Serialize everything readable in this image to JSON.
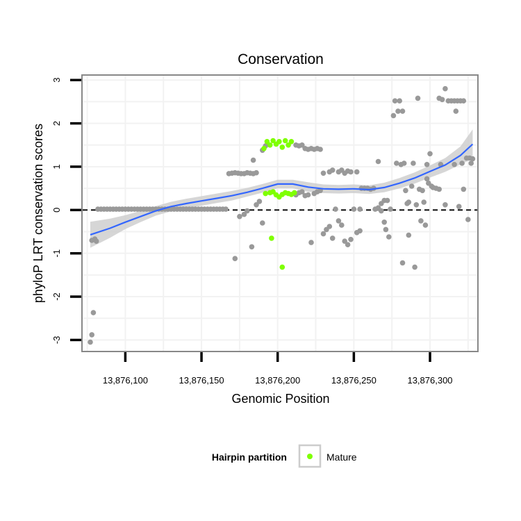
{
  "chart_data": {
    "type": "scatter",
    "title": "Conservation",
    "xlabel": "Genomic Position",
    "ylabel": "phyloP LRT conservation scores",
    "xlim": [
      13876072,
      13876331
    ],
    "ylim": [
      -3.25,
      3.1
    ],
    "x_ticks": [
      13876100,
      13876150,
      13876200,
      13876250,
      13876300
    ],
    "x_tick_labels": [
      "13,876,100",
      "13,876,150",
      "13,876,200",
      "13,876,250",
      "13,876,300"
    ],
    "y_ticks": [
      -3,
      -2,
      -1,
      0,
      1,
      2,
      3
    ],
    "y_tick_labels": [
      "-3",
      "-2",
      "-1",
      "0",
      "1",
      "2",
      "3"
    ],
    "reference_line": {
      "y": 0,
      "style": "dashed"
    },
    "colors": {
      "other": "#999999",
      "mature": "#7FFF00",
      "smooth": "#3366FF",
      "ribbon": "#CCCCCC",
      "refline": "#000000",
      "panel_border": "#888888",
      "grid": "#F2F2F2"
    },
    "legend": {
      "title": "Hairpin partition",
      "entries": [
        {
          "label": "Mature",
          "color": "#7FFF00"
        }
      ],
      "position": "bottom"
    },
    "series": [
      {
        "name": "Other",
        "points": [
          [
            13876077,
            -3.05
          ],
          [
            13876078,
            -2.88
          ],
          [
            13876079,
            -2.37
          ],
          [
            13876078,
            -0.7
          ],
          [
            13876080,
            -0.67
          ],
          [
            13876081,
            -0.72
          ],
          [
            13876082,
            0.02
          ],
          [
            13876084,
            0.02
          ],
          [
            13876086,
            0.02
          ],
          [
            13876088,
            0.02
          ],
          [
            13876090,
            0.02
          ],
          [
            13876092,
            0.02
          ],
          [
            13876094,
            0.02
          ],
          [
            13876096,
            0.02
          ],
          [
            13876098,
            0.02
          ],
          [
            13876100,
            0.02
          ],
          [
            13876102,
            0.02
          ],
          [
            13876104,
            0.02
          ],
          [
            13876106,
            0.02
          ],
          [
            13876108,
            0.02
          ],
          [
            13876110,
            0.02
          ],
          [
            13876112,
            0.02
          ],
          [
            13876114,
            0.02
          ],
          [
            13876116,
            0.02
          ],
          [
            13876118,
            0.02
          ],
          [
            13876120,
            0.02
          ],
          [
            13876122,
            0.02
          ],
          [
            13876124,
            0.02
          ],
          [
            13876126,
            0.02
          ],
          [
            13876128,
            0.02
          ],
          [
            13876130,
            0.02
          ],
          [
            13876132,
            0.02
          ],
          [
            13876134,
            0.02
          ],
          [
            13876136,
            0.02
          ],
          [
            13876138,
            0.02
          ],
          [
            13876140,
            0.02
          ],
          [
            13876142,
            0.02
          ],
          [
            13876144,
            0.02
          ],
          [
            13876146,
            0.02
          ],
          [
            13876148,
            0.02
          ],
          [
            13876150,
            0.02
          ],
          [
            13876152,
            0.02
          ],
          [
            13876154,
            0.02
          ],
          [
            13876156,
            0.02
          ],
          [
            13876158,
            0.02
          ],
          [
            13876160,
            0.02
          ],
          [
            13876162,
            0.02
          ],
          [
            13876164,
            0.02
          ],
          [
            13876166,
            0.02
          ],
          [
            13876168,
            0.84
          ],
          [
            13876170,
            0.85
          ],
          [
            13876172,
            0.86
          ],
          [
            13876174,
            0.85
          ],
          [
            13876176,
            0.84
          ],
          [
            13876178,
            0.84
          ],
          [
            13876180,
            0.86
          ],
          [
            13876182,
            0.85
          ],
          [
            13876184,
            0.84
          ],
          [
            13876186,
            0.86
          ],
          [
            13876172,
            -1.12
          ],
          [
            13876175,
            -0.15
          ],
          [
            13876178,
            -0.1
          ],
          [
            13876180,
            -0.02
          ],
          [
            13876183,
            -0.85
          ],
          [
            13876184,
            1.15
          ],
          [
            13876186,
            0.12
          ],
          [
            13876188,
            0.2
          ],
          [
            13876190,
            -0.3
          ],
          [
            13876190,
            1.38
          ],
          [
            13876192,
            1.48
          ],
          [
            13876212,
            1.5
          ],
          [
            13876214,
            1.48
          ],
          [
            13876216,
            1.5
          ],
          [
            13876218,
            1.42
          ],
          [
            13876220,
            1.4
          ],
          [
            13876222,
            1.42
          ],
          [
            13876224,
            1.4
          ],
          [
            13876226,
            1.42
          ],
          [
            13876228,
            1.4
          ],
          [
            13876212,
            0.35
          ],
          [
            13876214,
            0.4
          ],
          [
            13876216,
            0.42
          ],
          [
            13876218,
            0.33
          ],
          [
            13876220,
            0.35
          ],
          [
            13876222,
            -0.75
          ],
          [
            13876224,
            0.38
          ],
          [
            13876226,
            0.42
          ],
          [
            13876228,
            0.45
          ],
          [
            13876230,
            0.85
          ],
          [
            13876232,
            -0.45
          ],
          [
            13876234,
            -0.38
          ],
          [
            13876236,
            -0.65
          ],
          [
            13876230,
            -0.55
          ],
          [
            13876234,
            0.88
          ],
          [
            13876236,
            0.92
          ],
          [
            13876238,
            0.02
          ],
          [
            13876240,
            -0.25
          ],
          [
            13876242,
            -0.35
          ],
          [
            13876244,
            -0.72
          ],
          [
            13876240,
            0.88
          ],
          [
            13876242,
            0.92
          ],
          [
            13876244,
            0.85
          ],
          [
            13876246,
            0.9
          ],
          [
            13876246,
            -0.8
          ],
          [
            13876248,
            -0.68
          ],
          [
            13876248,
            0.88
          ],
          [
            13876250,
            0.02
          ],
          [
            13876252,
            -0.52
          ],
          [
            13876254,
            0.02
          ],
          [
            13876252,
            0.88
          ],
          [
            13876254,
            -0.48
          ],
          [
            13876255,
            0.5
          ],
          [
            13876257,
            0.5
          ],
          [
            13876259,
            0.5
          ],
          [
            13876261,
            0.48
          ],
          [
            13876263,
            0.5
          ],
          [
            13876264,
            0.02
          ],
          [
            13876266,
            0.05
          ],
          [
            13876266,
            1.12
          ],
          [
            13876268,
            -0.02
          ],
          [
            13876268,
            0.15
          ],
          [
            13876270,
            0.22
          ],
          [
            13876270,
            -0.28
          ],
          [
            13876271,
            -0.45
          ],
          [
            13876272,
            0.22
          ],
          [
            13876273,
            -0.62
          ],
          [
            13876274,
            0.02
          ],
          [
            13876276,
            2.18
          ],
          [
            13876277,
            2.52
          ],
          [
            13876278,
            1.08
          ],
          [
            13876279,
            2.28
          ],
          [
            13876280,
            2.52
          ],
          [
            13876281,
            1.05
          ],
          [
            13876282,
            2.28
          ],
          [
            13876283,
            1.08
          ],
          [
            13876282,
            -1.22
          ],
          [
            13876284,
            0.45
          ],
          [
            13876285,
            0.15
          ],
          [
            13876286,
            0.18
          ],
          [
            13876286,
            -0.58
          ],
          [
            13876288,
            0.55
          ],
          [
            13876289,
            1.08
          ],
          [
            13876290,
            -1.32
          ],
          [
            13876291,
            0.12
          ],
          [
            13876292,
            2.58
          ],
          [
            13876293,
            0.48
          ],
          [
            13876294,
            -0.25
          ],
          [
            13876295,
            0.45
          ],
          [
            13876296,
            0.18
          ],
          [
            13876297,
            -0.35
          ],
          [
            13876298,
            1.05
          ],
          [
            13876298,
            0.72
          ],
          [
            13876299,
            0.62
          ],
          [
            13876300,
            1.3
          ],
          [
            13876301,
            0.55
          ],
          [
            13876302,
            0.52
          ],
          [
            13876304,
            0.5
          ],
          [
            13876306,
            0.48
          ],
          [
            13876307,
            1.05
          ],
          [
            13876306,
            2.58
          ],
          [
            13876308,
            2.55
          ],
          [
            13876310,
            2.8
          ],
          [
            13876310,
            0.12
          ],
          [
            13876312,
            2.52
          ],
          [
            13876314,
            2.52
          ],
          [
            13876316,
            2.52
          ],
          [
            13876316,
            1.05
          ],
          [
            13876317,
            2.28
          ],
          [
            13876318,
            2.52
          ],
          [
            13876319,
            0.08
          ],
          [
            13876320,
            2.52
          ],
          [
            13876321,
            1.08
          ],
          [
            13876322,
            2.52
          ],
          [
            13876322,
            0.48
          ],
          [
            13876324,
            1.2
          ],
          [
            13876325,
            -0.22
          ],
          [
            13876326,
            1.2
          ],
          [
            13876327,
            1.08
          ],
          [
            13876328,
            1.18
          ]
        ]
      },
      {
        "name": "Mature",
        "points": [
          [
            13876191,
            1.42
          ],
          [
            13876193,
            1.58
          ],
          [
            13876195,
            1.5
          ],
          [
            13876197,
            1.6
          ],
          [
            13876199,
            1.52
          ],
          [
            13876201,
            1.58
          ],
          [
            13876203,
            1.45
          ],
          [
            13876205,
            1.6
          ],
          [
            13876207,
            1.5
          ],
          [
            13876209,
            1.58
          ],
          [
            13876192,
            0.38
          ],
          [
            13876195,
            0.4
          ],
          [
            13876197,
            0.42
          ],
          [
            13876199,
            0.35
          ],
          [
            13876201,
            0.3
          ],
          [
            13876203,
            0.36
          ],
          [
            13876205,
            0.4
          ],
          [
            13876207,
            0.38
          ],
          [
            13876209,
            0.36
          ],
          [
            13876211,
            0.4
          ],
          [
            13876196,
            -0.65
          ],
          [
            13876203,
            -1.32
          ]
        ]
      }
    ],
    "smooth": {
      "method": "loess",
      "x": [
        13876077,
        13876090,
        13876100,
        13876110,
        13876120,
        13876130,
        13876140,
        13876150,
        13876160,
        13876170,
        13876180,
        13876190,
        13876200,
        13876210,
        13876220,
        13876230,
        13876240,
        13876250,
        13876260,
        13876270,
        13876280,
        13876290,
        13876300,
        13876310,
        13876320,
        13876328
      ],
      "y": [
        -0.57,
        -0.42,
        -0.28,
        -0.15,
        -0.02,
        0.08,
        0.15,
        0.21,
        0.27,
        0.33,
        0.41,
        0.5,
        0.6,
        0.6,
        0.53,
        0.49,
        0.48,
        0.49,
        0.47,
        0.52,
        0.62,
        0.74,
        0.89,
        1.04,
        1.26,
        1.52
      ],
      "lower": [
        -0.87,
        -0.64,
        -0.44,
        -0.28,
        -0.13,
        -0.03,
        0.04,
        0.1,
        0.16,
        0.22,
        0.31,
        0.4,
        0.5,
        0.5,
        0.42,
        0.39,
        0.38,
        0.39,
        0.37,
        0.41,
        0.5,
        0.61,
        0.75,
        0.88,
        1.05,
        1.18
      ],
      "upper": [
        -0.27,
        -0.2,
        -0.12,
        -0.02,
        0.09,
        0.19,
        0.26,
        0.32,
        0.38,
        0.44,
        0.51,
        0.6,
        0.7,
        0.7,
        0.64,
        0.59,
        0.58,
        0.59,
        0.57,
        0.63,
        0.74,
        0.87,
        1.03,
        1.2,
        1.47,
        1.86
      ]
    }
  }
}
